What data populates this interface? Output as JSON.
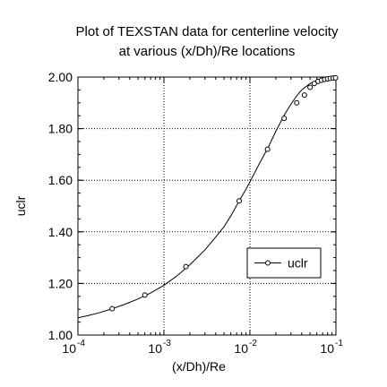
{
  "chart_data": {
    "type": "line",
    "title_lines": [
      "Plot of TEXSTAN data for centerline velocity",
      "at various (x/Dh)/Re locations"
    ],
    "xlabel": "(x/Dh)/Re",
    "ylabel": "uclr",
    "x_scale": "log",
    "xlim": [
      0.0001,
      0.1
    ],
    "ylim": [
      1.0,
      2.0
    ],
    "x_ticks": [
      {
        "base": "10",
        "exp": "-4"
      },
      {
        "base": "10",
        "exp": "-3"
      },
      {
        "base": "10",
        "exp": "-2"
      },
      {
        "base": "10",
        "exp": "-1"
      }
    ],
    "y_ticks": [
      "1.00",
      "1.20",
      "1.40",
      "1.60",
      "1.80",
      "2.00"
    ],
    "grid": true,
    "grid_style": "dotted",
    "legend": {
      "position": "lower-right",
      "entries": [
        "uclr"
      ]
    },
    "series": [
      {
        "name": "uclr",
        "color": "#000000",
        "curve": [
          [
            0.0001,
            1.067
          ],
          [
            0.00013,
            1.075
          ],
          [
            0.00018,
            1.087
          ],
          [
            0.00025,
            1.102
          ],
          [
            0.00035,
            1.119
          ],
          [
            0.0005,
            1.14
          ],
          [
            0.0007,
            1.163
          ],
          [
            0.001,
            1.193
          ],
          [
            0.0014,
            1.228
          ],
          [
            0.002,
            1.272
          ],
          [
            0.003,
            1.33
          ],
          [
            0.004,
            1.38
          ],
          [
            0.005,
            1.42
          ],
          [
            0.006,
            1.462
          ],
          [
            0.0075,
            1.52
          ],
          [
            0.009,
            1.565
          ],
          [
            0.011,
            1.62
          ],
          [
            0.013,
            1.667
          ],
          [
            0.015,
            1.705
          ],
          [
            0.017,
            1.74
          ],
          [
            0.02,
            1.79
          ],
          [
            0.025,
            1.852
          ],
          [
            0.03,
            1.895
          ],
          [
            0.035,
            1.927
          ],
          [
            0.04,
            1.95
          ],
          [
            0.05,
            1.975
          ],
          [
            0.06,
            1.986
          ],
          [
            0.07,
            1.992
          ],
          [
            0.08,
            1.995
          ],
          [
            0.1,
            1.997
          ]
        ],
        "markers": [
          [
            0.00025,
            1.102
          ],
          [
            0.0006,
            1.155
          ],
          [
            0.0018,
            1.265
          ],
          [
            0.0075,
            1.52
          ],
          [
            0.016,
            1.72
          ],
          [
            0.025,
            1.84
          ],
          [
            0.035,
            1.9
          ],
          [
            0.043,
            1.93
          ],
          [
            0.05,
            1.96
          ],
          [
            0.056,
            1.975
          ],
          [
            0.062,
            1.983
          ],
          [
            0.068,
            1.988
          ],
          [
            0.074,
            1.991
          ],
          [
            0.08,
            1.993
          ],
          [
            0.086,
            1.995
          ],
          [
            0.093,
            1.996
          ],
          [
            0.099,
            1.997
          ]
        ]
      }
    ]
  }
}
